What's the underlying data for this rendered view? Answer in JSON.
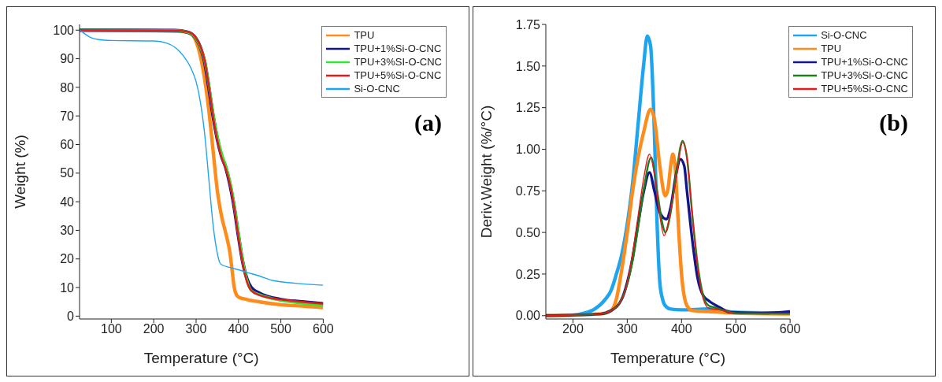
{
  "chart_data": [
    {
      "type": "line",
      "xlabel": "Temperature (°C)",
      "ylabel": "Weight (%)",
      "annotations": [
        "(a)"
      ],
      "xlim": [
        25,
        600
      ],
      "xticks": [
        100,
        200,
        300,
        400,
        500,
        600
      ],
      "ylim": [
        -1,
        102
      ],
      "yticks": [
        0,
        10,
        20,
        30,
        40,
        50,
        60,
        70,
        80,
        90,
        100
      ],
      "grid": false,
      "legend": "top right",
      "marker": "none",
      "line_style": "solid",
      "series": [
        {
          "name": "TPU",
          "color": "#ff8c1a",
          "x": [
            25,
            200,
            270,
            290,
            300,
            310,
            320,
            330,
            340,
            350,
            360,
            370,
            380,
            385,
            390,
            395,
            400,
            420,
            450,
            500,
            550,
            600
          ],
          "values": [
            100,
            99.8,
            99.5,
            98.5,
            96,
            91,
            83,
            72,
            58,
            44,
            35,
            29,
            22,
            16,
            10,
            7.5,
            6.7,
            5.8,
            5,
            4,
            3.5,
            3
          ]
        },
        {
          "name": "TPU+1%Si-O-CNC",
          "color": "#14148c",
          "x": [
            25,
            250,
            280,
            300,
            310,
            320,
            330,
            340,
            350,
            360,
            370,
            380,
            390,
            400,
            410,
            420,
            430,
            450,
            500,
            550,
            600
          ],
          "values": [
            100,
            99.9,
            99.3,
            97,
            94,
            89,
            80,
            70,
            62,
            56,
            52,
            46,
            38,
            28,
            19,
            13,
            10,
            8,
            5.8,
            5,
            4.3
          ]
        },
        {
          "name": "TPU+3%SI-O-CNC",
          "color": "#33e633",
          "x": [
            25,
            250,
            280,
            300,
            310,
            320,
            330,
            340,
            350,
            360,
            370,
            380,
            390,
            400,
            410,
            420,
            430,
            450,
            500,
            550,
            600
          ],
          "values": [
            100,
            99.9,
            99.3,
            97,
            94,
            89.5,
            81,
            71,
            63,
            57,
            52.5,
            47,
            39,
            29,
            19.5,
            12.5,
            9,
            7.5,
            5.5,
            4.5,
            3.8
          ]
        },
        {
          "name": "TPU+5%Si-O-CNC",
          "color": "#e61a1a",
          "x": [
            25,
            250,
            280,
            300,
            310,
            320,
            330,
            340,
            350,
            360,
            370,
            380,
            390,
            400,
            410,
            420,
            430,
            450,
            500,
            550,
            600
          ],
          "values": [
            100,
            99.9,
            99.4,
            97.2,
            94.3,
            89.5,
            80.5,
            70,
            61.5,
            55.5,
            51.5,
            46,
            38,
            27.5,
            18.5,
            12,
            9,
            7.3,
            5.8,
            5,
            4.3
          ]
        },
        {
          "name": "Si-O-CNC",
          "color": "#1ea5f0",
          "x": [
            25,
            30,
            50,
            70,
            100,
            200,
            230,
            250,
            270,
            290,
            300,
            310,
            320,
            330,
            340,
            350,
            355,
            360,
            380,
            400,
            420,
            450,
            480,
            500,
            550,
            600
          ],
          "values": [
            100,
            99.5,
            97.5,
            96.7,
            96.4,
            96.2,
            95.5,
            94,
            91,
            86,
            82,
            75,
            64,
            48,
            32,
            22,
            19,
            18,
            17,
            16.2,
            15.3,
            14,
            12.5,
            12,
            11.3,
            10.8
          ]
        }
      ]
    },
    {
      "type": "line",
      "xlabel": "Temperature (°C)",
      "ylabel": "Deriv.Weight (%/°C)",
      "annotations": [
        "(b)"
      ],
      "xlim": [
        150,
        600
      ],
      "xticks": [
        200,
        300,
        400,
        500,
        600
      ],
      "ylim": [
        -0.02,
        1.75
      ],
      "yticks": [
        {
          "value": 0,
          "label": "0.00"
        },
        0.25,
        {
          "value": 0.5,
          "label": "0.50"
        },
        0.75,
        {
          "value": 1,
          "label": "1.00"
        },
        1.25,
        {
          "value": 1.5,
          "label": "1.50"
        },
        1.75
      ],
      "grid": false,
      "legend": "top right",
      "marker": "none",
      "line_style": "solid",
      "series": [
        {
          "name": "Si-O-CNC",
          "color": "#1ea5f0",
          "x": [
            150,
            200,
            220,
            240,
            260,
            270,
            280,
            290,
            300,
            310,
            320,
            330,
            337,
            343,
            350,
            355,
            360,
            365,
            370,
            380,
            400,
            450,
            500,
            600
          ],
          "values": [
            0,
            0.003,
            0.015,
            0.04,
            0.1,
            0.15,
            0.25,
            0.37,
            0.55,
            0.8,
            1.15,
            1.5,
            1.68,
            1.62,
            1.1,
            0.55,
            0.2,
            0.1,
            0.06,
            0.04,
            0.035,
            0.04,
            0.02,
            0.015
          ]
        },
        {
          "name": "TPU",
          "color": "#ff8c1a",
          "x": [
            150,
            250,
            270,
            280,
            290,
            300,
            310,
            320,
            330,
            343,
            350,
            360,
            370,
            375,
            380,
            384,
            388,
            395,
            400,
            410,
            420,
            450,
            500,
            600
          ],
          "values": [
            0,
            0.01,
            0.03,
            0.1,
            0.28,
            0.5,
            0.75,
            0.95,
            1.1,
            1.24,
            1.18,
            0.9,
            0.72,
            0.76,
            0.9,
            0.97,
            0.9,
            0.5,
            0.25,
            0.06,
            0.03,
            0.025,
            0.015,
            0.01
          ]
        },
        {
          "name": "TPU+1%Si-O-CNC",
          "color": "#14148c",
          "x": [
            150,
            250,
            270,
            290,
            300,
            310,
            320,
            330,
            341,
            350,
            360,
            372,
            380,
            390,
            398,
            405,
            410,
            420,
            430,
            440,
            450,
            470,
            490,
            550,
            600
          ],
          "values": [
            0,
            0.01,
            0.03,
            0.1,
            0.2,
            0.35,
            0.55,
            0.74,
            0.86,
            0.75,
            0.62,
            0.58,
            0.65,
            0.85,
            0.94,
            0.9,
            0.75,
            0.45,
            0.22,
            0.12,
            0.09,
            0.05,
            0.02,
            0.015,
            0.025
          ]
        },
        {
          "name": "TPU+3%Si-O-CNC",
          "color": "#1a801a",
          "x": [
            150,
            250,
            270,
            290,
            300,
            310,
            320,
            330,
            344,
            355,
            365,
            370,
            380,
            390,
            402,
            410,
            420,
            430,
            440,
            450,
            460,
            480,
            500,
            600
          ],
          "values": [
            0,
            0.01,
            0.03,
            0.1,
            0.19,
            0.33,
            0.53,
            0.75,
            0.95,
            0.75,
            0.55,
            0.5,
            0.62,
            0.85,
            1.05,
            0.95,
            0.6,
            0.3,
            0.12,
            0.06,
            0.05,
            0.03,
            0.015,
            0.012
          ]
        },
        {
          "name": "TPU+5%Si-O-CNC",
          "color": "#e61a1a",
          "x": [
            150,
            250,
            270,
            290,
            300,
            310,
            320,
            330,
            341,
            350,
            360,
            368,
            375,
            390,
            402,
            410,
            420,
            430,
            440,
            450,
            470,
            500,
            600
          ],
          "values": [
            0,
            0.01,
            0.03,
            0.1,
            0.2,
            0.38,
            0.6,
            0.82,
            0.97,
            0.85,
            0.6,
            0.48,
            0.55,
            0.82,
            1.04,
            0.95,
            0.6,
            0.28,
            0.1,
            0.045,
            0.035,
            0.015,
            0.015
          ]
        }
      ]
    }
  ]
}
